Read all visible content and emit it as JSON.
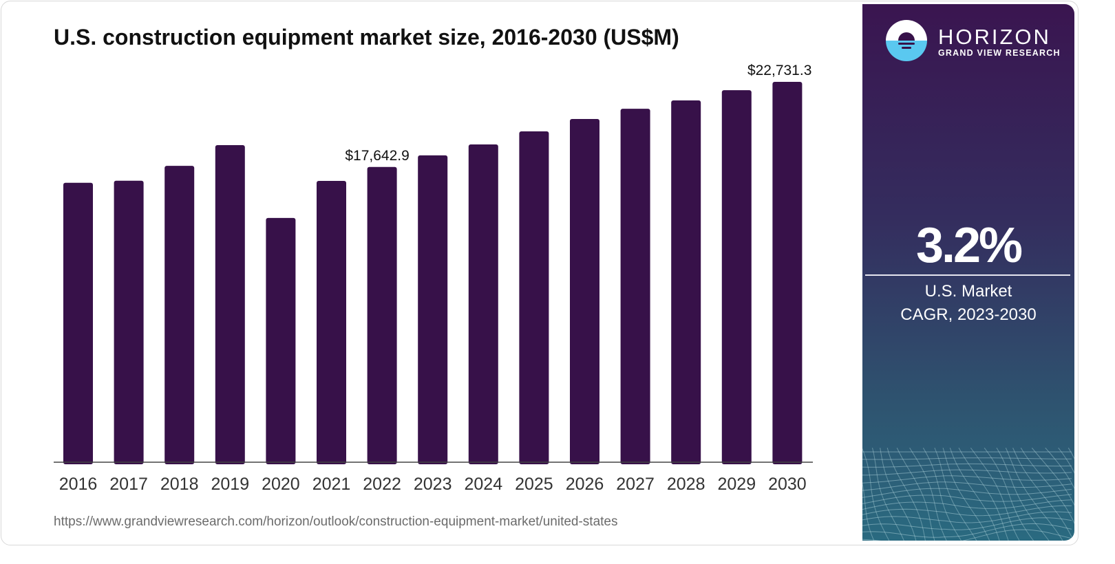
{
  "chart_data": {
    "type": "bar",
    "title": "U.S. construction equipment market size, 2016-2030 (US$M)",
    "xlabel": "",
    "ylabel": "",
    "categories": [
      "2016",
      "2017",
      "2018",
      "2019",
      "2020",
      "2021",
      "2022",
      "2023",
      "2024",
      "2025",
      "2026",
      "2027",
      "2028",
      "2029",
      "2030"
    ],
    "values": [
      16700,
      16820,
      17710,
      18950,
      14600,
      16810,
      17642.9,
      18340,
      18990,
      19770,
      20510,
      21125,
      21620,
      22235,
      22731.3
    ],
    "data_labels": {
      "2022": "$17,642.9",
      "2030": "$22,731.3"
    },
    "ylim": [
      0,
      22731.3
    ],
    "grid": false,
    "bar_color": "#371149"
  },
  "title": "U.S. construction equipment market size, 2016-2030 (US$M)",
  "source_url": "https://www.grandviewresearch.com/horizon/outlook/construction-equipment-market/united-states",
  "sidebar": {
    "brand": "HORIZON",
    "brand_sub": "GRAND VIEW RESEARCH",
    "cagr_value": "3.2%",
    "caption_line1": "U.S. Market",
    "caption_line2": "CAGR, 2023-2030",
    "logo_icon": "horizon-sun-icon"
  }
}
